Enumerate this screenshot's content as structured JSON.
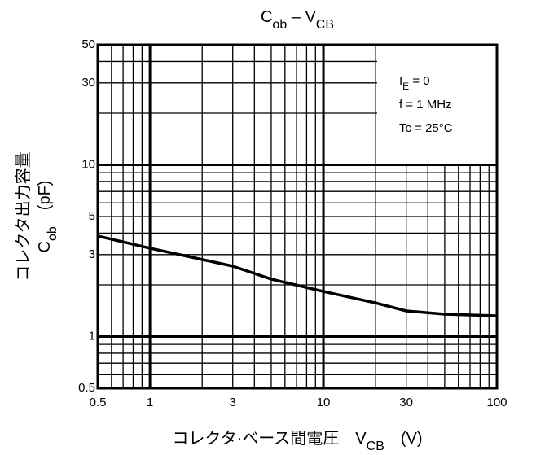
{
  "chart_data": {
    "type": "line",
    "title": [
      "C",
      "ob",
      " – V",
      "CB"
    ],
    "xlabel": [
      "コレクタ·ベース間電圧　V",
      "CB",
      "　(V)"
    ],
    "ylabel": [
      "コレクタ出力容量"
    ],
    "ylabel2": [
      "C",
      "ob",
      "　(pF)"
    ],
    "annotations": [
      [
        "I",
        "E",
        " = 0"
      ],
      [
        "f = 1 MHz"
      ],
      [
        "Tc = 25°C"
      ]
    ],
    "series": [
      {
        "color": "#000000",
        "x": [
          0.5,
          1,
          3,
          5,
          10,
          20,
          30,
          50,
          100
        ],
        "values": [
          3.85,
          3.27,
          2.57,
          2.16,
          1.83,
          1.57,
          1.41,
          1.35,
          1.32
        ]
      }
    ],
    "xlog": true,
    "ylog": true,
    "xlim": [
      0.5,
      100
    ],
    "ylim": [
      0.5,
      50
    ],
    "xticks": [
      0.5,
      1,
      3,
      10,
      30,
      100
    ],
    "yticks": [
      0.5,
      1,
      3,
      5,
      10,
      30,
      50
    ],
    "minor_xticks": [
      0.6,
      0.7,
      0.8,
      0.9,
      2,
      4,
      5,
      6,
      7,
      8,
      9,
      20,
      40,
      50,
      60,
      70,
      80,
      90
    ],
    "minor_yticks": [
      0.6,
      0.7,
      0.8,
      0.9,
      2,
      4,
      6,
      7,
      8,
      9,
      20,
      40
    ],
    "major_gridlines": [
      1,
      10
    ],
    "grid": true
  }
}
